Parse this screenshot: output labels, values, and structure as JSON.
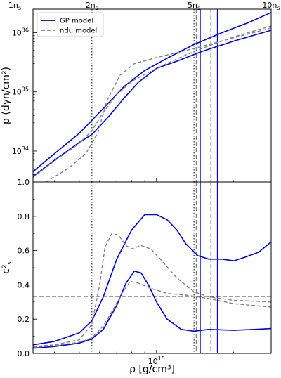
{
  "chart_data": [
    {
      "panel": "top",
      "type": "line",
      "title": "",
      "xlabel": "",
      "ylabel": "p (dyn/cm²)",
      "yscale": "log",
      "xscale": "log",
      "xlim": [
        330000000000000.0,
        2800000000000000.0
      ],
      "ylim": [
        3e+33,
        2.5e+36
      ],
      "yticks": [
        {
          "v": 1e+34,
          "label": "10"
        },
        {
          "v": 1e+35,
          "label": "10"
        },
        {
          "v": 1e+36,
          "label": "10"
        }
      ],
      "yticks_exp": [
        "34",
        "35",
        "36"
      ],
      "top_axis_ticks": [
        {
          "x": 280000000000000.0,
          "label": "1n"
        },
        {
          "x": 560000000000000.0,
          "label": "2n"
        },
        {
          "x": 1400000000000000.0,
          "label": "5n"
        },
        {
          "x": 2800000000000000.0,
          "label": "10n"
        }
      ],
      "top_axis_subscript": "s",
      "legend": {
        "placement": "top-left",
        "entries": [
          {
            "name": "GP model",
            "color": "#0000dd",
            "dash": "solid"
          },
          {
            "name": "ndu model",
            "color": "#808080",
            "dash": "dashed"
          }
        ]
      },
      "series": [
        {
          "model": "GP",
          "color": "#0000dd",
          "dash": "solid",
          "points": [
            [
              330000000000000.0,
              4.5e+33
            ],
            [
              400000000000000.0,
              9e+33
            ],
            [
              500000000000000.0,
              2e+34
            ],
            [
              560000000000000.0,
              3.3e+34
            ],
            [
              650000000000000.0,
              6.5e+34
            ],
            [
              750000000000000.0,
              1.25e+35
            ],
            [
              900000000000000.0,
              2.3e+35
            ],
            [
              1100000000000000.0,
              3.7e+35
            ],
            [
              1400000000000000.0,
              6.3e+35
            ],
            [
              1800000000000000.0,
              1e+36
            ],
            [
              2300000000000000.0,
              1.5e+36
            ],
            [
              2800000000000000.0,
              2.2e+36
            ]
          ]
        },
        {
          "model": "GP",
          "color": "#0000dd",
          "dash": "solid",
          "points": [
            [
              330000000000000.0,
              3.7e+33
            ],
            [
              400000000000000.0,
              7e+33
            ],
            [
              500000000000000.0,
              1.4e+34
            ],
            [
              560000000000000.0,
              1.9e+34
            ],
            [
              650000000000000.0,
              3.8e+34
            ],
            [
              750000000000000.0,
              8e+34
            ],
            [
              850000000000000.0,
              1.45e+35
            ],
            [
              1000000000000000.0,
              2.5e+35
            ],
            [
              1200000000000000.0,
              3.3e+35
            ],
            [
              1500000000000000.0,
              4.8e+35
            ],
            [
              2000000000000000.0,
              7.2e+35
            ],
            [
              2800000000000000.0,
              1.1e+36
            ]
          ]
        },
        {
          "model": "ndu",
          "color": "#808080",
          "dash": "dashed",
          "points": [
            [
              330000000000000.0,
              3.6e+33
            ],
            [
              400000000000000.0,
              6.8e+33
            ],
            [
              500000000000000.0,
              1.35e+34
            ],
            [
              560000000000000.0,
              2.2e+34
            ],
            [
              620000000000000.0,
              4.5e+34
            ],
            [
              700000000000000.0,
              9e+34
            ],
            [
              800000000000000.0,
              1.5e+35
            ],
            [
              1000000000000000.0,
              2.5e+35
            ],
            [
              1300000000000000.0,
              4.2e+35
            ],
            [
              1600000000000000.0,
              6e+35
            ],
            [
              2000000000000000.0,
              8.5e+35
            ],
            [
              2800000000000000.0,
              1.3e+36
            ]
          ]
        },
        {
          "model": "ndu",
          "color": "#808080",
          "dash": "dashed",
          "points": [
            [
              370000000000000.0,
              3e+33
            ],
            [
              450000000000000.0,
              5e+33
            ],
            [
              530000000000000.0,
              9e+33
            ],
            [
              590000000000000.0,
              2e+34
            ],
            [
              640000000000000.0,
              7e+34
            ],
            [
              720000000000000.0,
              1.9e+35
            ],
            [
              820000000000000.0,
              3e+35
            ],
            [
              1000000000000000.0,
              3.8e+35
            ],
            [
              1300000000000000.0,
              5e+35
            ],
            [
              1600000000000000.0,
              6.3e+35
            ],
            [
              2000000000000000.0,
              8.2e+35
            ],
            [
              2800000000000000.0,
              1.2e+36
            ]
          ]
        }
      ],
      "vlines": [
        {
          "x": 560000000000000.0,
          "color": "#000000",
          "dash": "dotted"
        },
        {
          "x": 1400000000000000.0,
          "color": "#000000",
          "dash": "dotted"
        },
        {
          "x": 1430000000000000.0,
          "color": "#808080",
          "dash": "dashed"
        },
        {
          "x": 1480000000000000.0,
          "color": "#0000dd",
          "dash": "solid"
        },
        {
          "x": 1630000000000000.0,
          "color": "#808080",
          "dash": "dashed"
        },
        {
          "x": 1730000000000000.0,
          "color": "#0000dd",
          "dash": "solid"
        }
      ]
    },
    {
      "panel": "bottom",
      "type": "line",
      "title": "",
      "xlabel": "ρ [g/cm³]",
      "ylabel": "c²",
      "ylabel_sub": "s",
      "xscale": "log",
      "xlim": [
        330000000000000.0,
        2800000000000000.0
      ],
      "ylim": [
        0.0,
        1.0
      ],
      "yticks": [
        {
          "v": 0.0,
          "label": "0.0"
        },
        {
          "v": 0.2,
          "label": "0.2"
        },
        {
          "v": 0.4,
          "label": "0.4"
        },
        {
          "v": 0.6,
          "label": "0.6"
        },
        {
          "v": 0.8,
          "label": "0.8"
        },
        {
          "v": 1.0,
          "label": "1.0"
        }
      ],
      "xticks": [
        {
          "v": 1000000000000000.0,
          "label": "10"
        }
      ],
      "xticks_exp": [
        "15"
      ],
      "hlines": [
        {
          "y": 0.333,
          "color": "#000000",
          "dash": "dashed"
        }
      ],
      "series": [
        {
          "model": "GP",
          "color": "#0000dd",
          "dash": "solid",
          "points": [
            [
              330000000000000.0,
              0.05
            ],
            [
              400000000000000.0,
              0.07
            ],
            [
              500000000000000.0,
              0.12
            ],
            [
              560000000000000.0,
              0.19
            ],
            [
              620000000000000.0,
              0.33
            ],
            [
              700000000000000.0,
              0.55
            ],
            [
              800000000000000.0,
              0.72
            ],
            [
              900000000000000.0,
              0.81
            ],
            [
              1000000000000000.0,
              0.81
            ],
            [
              1100000000000000.0,
              0.78
            ],
            [
              1200000000000000.0,
              0.72
            ],
            [
              1300000000000000.0,
              0.64
            ],
            [
              1450000000000000.0,
              0.57
            ],
            [
              1600000000000000.0,
              0.55
            ],
            [
              1800000000000000.0,
              0.55
            ],
            [
              2000000000000000.0,
              0.54
            ],
            [
              2200000000000000.0,
              0.56
            ],
            [
              2500000000000000.0,
              0.59
            ],
            [
              2800000000000000.0,
              0.65
            ]
          ]
        },
        {
          "model": "GP",
          "color": "#0000dd",
          "dash": "solid",
          "points": [
            [
              330000000000000.0,
              0.03
            ],
            [
              400000000000000.0,
              0.04
            ],
            [
              500000000000000.0,
              0.06
            ],
            [
              560000000000000.0,
              0.085
            ],
            [
              620000000000000.0,
              0.14
            ],
            [
              700000000000000.0,
              0.28
            ],
            [
              760000000000000.0,
              0.41
            ],
            [
              820000000000000.0,
              0.48
            ],
            [
              870000000000000.0,
              0.47
            ],
            [
              930000000000000.0,
              0.4
            ],
            [
              1000000000000000.0,
              0.3
            ],
            [
              1100000000000000.0,
              0.2
            ],
            [
              1250000000000000.0,
              0.14
            ],
            [
              1400000000000000.0,
              0.13
            ],
            [
              1600000000000000.0,
              0.14
            ],
            [
              2000000000000000.0,
              0.135
            ],
            [
              2400000000000000.0,
              0.14
            ],
            [
              2800000000000000.0,
              0.145
            ]
          ]
        },
        {
          "model": "ndu",
          "color": "#808080",
          "dash": "dashed",
          "points": [
            [
              330000000000000.0,
              0.04
            ],
            [
              400000000000000.0,
              0.05
            ],
            [
              500000000000000.0,
              0.08
            ],
            [
              560000000000000.0,
              0.17
            ],
            [
              600000000000000.0,
              0.4
            ],
            [
              630000000000000.0,
              0.62
            ],
            [
              670000000000000.0,
              0.7
            ],
            [
              710000000000000.0,
              0.69
            ],
            [
              760000000000000.0,
              0.63
            ],
            [
              800000000000000.0,
              0.61
            ],
            [
              870000000000000.0,
              0.63
            ],
            [
              950000000000000.0,
              0.61
            ],
            [
              1050000000000000.0,
              0.54
            ],
            [
              1200000000000000.0,
              0.44
            ],
            [
              1400000000000000.0,
              0.36
            ],
            [
              1600000000000000.0,
              0.33
            ],
            [
              2000000000000000.0,
              0.31
            ],
            [
              2800000000000000.0,
              0.3
            ]
          ]
        },
        {
          "model": "ndu",
          "color": "#808080",
          "dash": "dashed",
          "points": [
            [
              330000000000000.0,
              0.035
            ],
            [
              400000000000000.0,
              0.045
            ],
            [
              500000000000000.0,
              0.065
            ],
            [
              560000000000000.0,
              0.09
            ],
            [
              620000000000000.0,
              0.16
            ],
            [
              680000000000000.0,
              0.26
            ],
            [
              740000000000000.0,
              0.36
            ],
            [
              790000000000000.0,
              0.42
            ],
            [
              850000000000000.0,
              0.41
            ],
            [
              950000000000000.0,
              0.38
            ],
            [
              1100000000000000.0,
              0.35
            ],
            [
              1300000000000000.0,
              0.34
            ],
            [
              1600000000000000.0,
              0.32
            ],
            [
              2000000000000000.0,
              0.29
            ],
            [
              2800000000000000.0,
              0.27
            ]
          ]
        }
      ],
      "vlines": [
        {
          "x": 560000000000000.0,
          "color": "#000000",
          "dash": "dotted"
        },
        {
          "x": 1400000000000000.0,
          "color": "#000000",
          "dash": "dotted"
        },
        {
          "x": 1430000000000000.0,
          "color": "#808080",
          "dash": "dashed"
        },
        {
          "x": 1480000000000000.0,
          "color": "#0000dd",
          "dash": "solid"
        },
        {
          "x": 1630000000000000.0,
          "color": "#808080",
          "dash": "dashed"
        },
        {
          "x": 1730000000000000.0,
          "color": "#0000dd",
          "dash": "solid"
        }
      ]
    }
  ]
}
